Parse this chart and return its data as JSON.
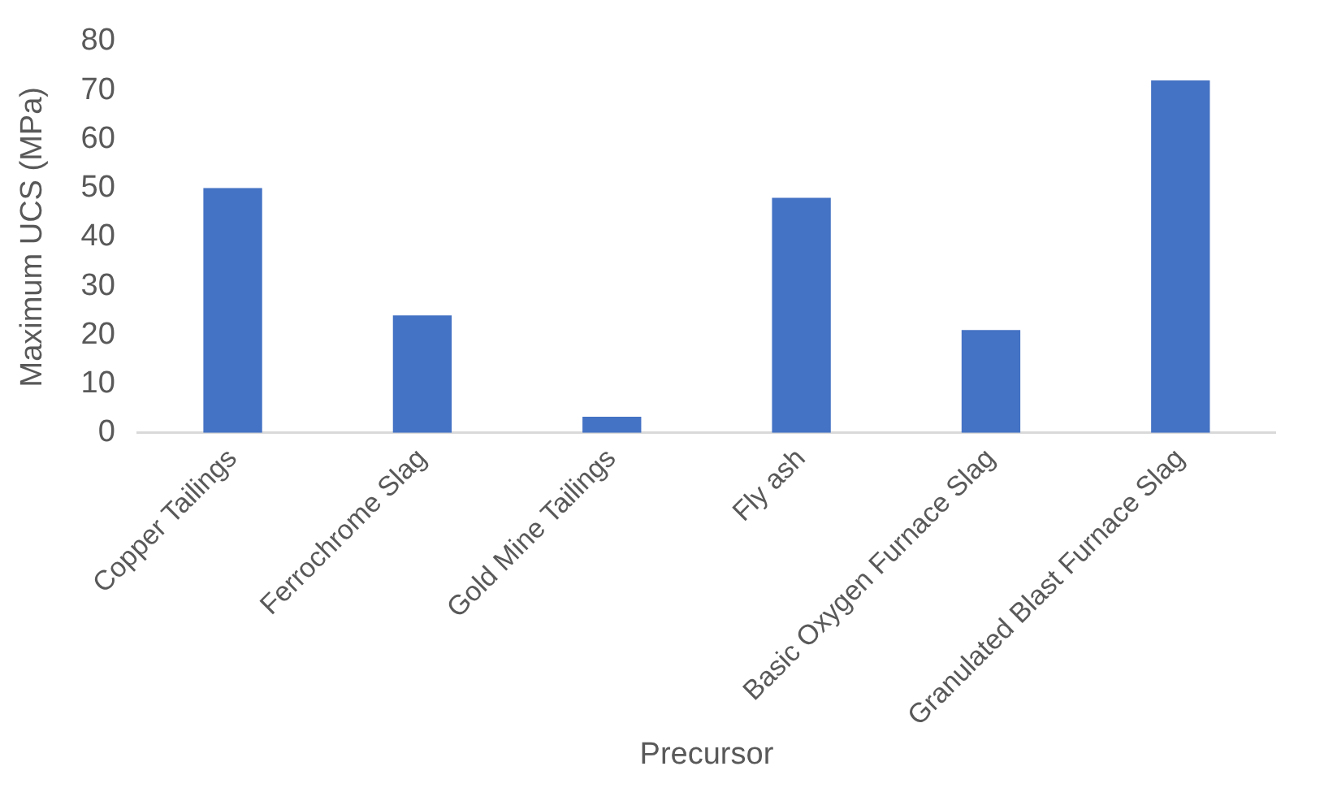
{
  "chart_data": {
    "type": "bar",
    "xlabel": "Precursor",
    "ylabel": "Maximum UCS (MPa)",
    "categories": [
      "Copper Tailings",
      "Ferrochrome Slag",
      "Gold Mine Tailings",
      "Fly ash",
      "Basic Oxygen Furnace Slag",
      "Granulated Blast Furnace Slag"
    ],
    "values": [
      50,
      24,
      3.3,
      48,
      21,
      72
    ],
    "color": "#4472c4",
    "ylim": [
      0,
      80
    ],
    "yticks": [
      0,
      10,
      20,
      30,
      40,
      50,
      60,
      70,
      80
    ],
    "grid": false,
    "legend": false
  }
}
